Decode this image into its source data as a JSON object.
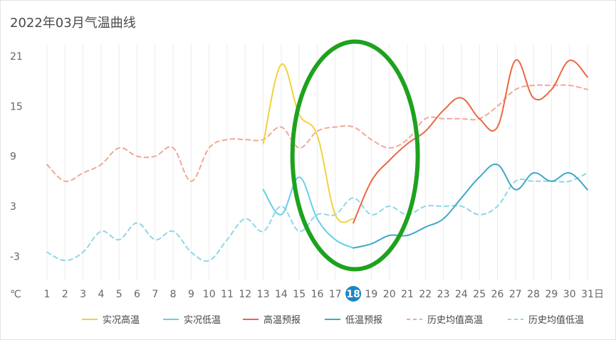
{
  "chart_data": {
    "type": "line",
    "title": "2022年03月气温曲线",
    "y_unit": "℃",
    "x_unit": "日",
    "ylim": [
      -5,
      23
    ],
    "yticks": [
      -3,
      3,
      9,
      15,
      21
    ],
    "x": [
      1,
      2,
      3,
      4,
      5,
      6,
      7,
      8,
      9,
      10,
      11,
      12,
      13,
      14,
      15,
      16,
      17,
      18,
      19,
      20,
      21,
      22,
      23,
      24,
      25,
      26,
      27,
      28,
      29,
      30,
      31
    ],
    "x_labels": [
      "1",
      "2",
      "3",
      "4",
      "5",
      "6",
      "7",
      "8",
      "9",
      "10",
      "11",
      "12",
      "13",
      "14",
      "15",
      "16",
      "17",
      "18",
      "19",
      "20",
      "21",
      "22",
      "23",
      "24",
      "25",
      "26",
      "27",
      "28",
      "29",
      "30",
      "31"
    ],
    "highlight_day": "18",
    "legend_position": "bottom-right",
    "grid": "vertical",
    "series": [
      {
        "name": "实况高温",
        "color": "#f2d23a",
        "dash": false,
        "points": [
          [
            13,
            10.5
          ],
          [
            14,
            20.0
          ],
          [
            15,
            14.0
          ],
          [
            16,
            11.5
          ],
          [
            17,
            2.0
          ],
          [
            18,
            1.5
          ]
        ]
      },
      {
        "name": "实况低温",
        "color": "#66cfe8",
        "dash": false,
        "points": [
          [
            13,
            5.0
          ],
          [
            14,
            2.0
          ],
          [
            15,
            6.5
          ],
          [
            16,
            1.5
          ],
          [
            17,
            -1.0
          ],
          [
            18,
            -2.0
          ]
        ]
      },
      {
        "name": "高温预报",
        "color": "#ee6644",
        "dash": false,
        "points": [
          [
            18,
            1.0
          ],
          [
            19,
            6.0
          ],
          [
            20,
            8.5
          ],
          [
            21,
            10.5
          ],
          [
            22,
            12.0
          ],
          [
            23,
            14.5
          ],
          [
            24,
            16.0
          ],
          [
            25,
            13.5
          ],
          [
            26,
            12.5
          ],
          [
            27,
            20.5
          ],
          [
            28,
            16.0
          ],
          [
            29,
            17.0
          ],
          [
            30,
            20.5
          ],
          [
            31,
            18.5
          ]
        ]
      },
      {
        "name": "低温预报",
        "color": "#3fa8c9",
        "dash": false,
        "points": [
          [
            18,
            -2.0
          ],
          [
            19,
            -1.5
          ],
          [
            20,
            -0.5
          ],
          [
            21,
            -0.5
          ],
          [
            22,
            0.5
          ],
          [
            23,
            1.5
          ],
          [
            24,
            4.0
          ],
          [
            25,
            6.5
          ],
          [
            26,
            8.0
          ],
          [
            27,
            5.0
          ],
          [
            28,
            7.0
          ],
          [
            29,
            6.0
          ],
          [
            30,
            7.0
          ],
          [
            31,
            5.0
          ]
        ]
      },
      {
        "name": "历史均值高温",
        "color": "#f3a796",
        "dash": true,
        "points": [
          [
            1,
            8.0
          ],
          [
            2,
            6.0
          ],
          [
            3,
            7.0
          ],
          [
            4,
            8.0
          ],
          [
            5,
            10.0
          ],
          [
            6,
            9.0
          ],
          [
            7,
            9.0
          ],
          [
            8,
            10.0
          ],
          [
            9,
            6.0
          ],
          [
            10,
            10.0
          ],
          [
            11,
            11.0
          ],
          [
            12,
            11.0
          ],
          [
            13,
            11.0
          ],
          [
            14,
            12.5
          ],
          [
            15,
            10.0
          ],
          [
            16,
            12.0
          ],
          [
            17,
            12.5
          ],
          [
            18,
            12.5
          ],
          [
            19,
            11.0
          ],
          [
            20,
            10.0
          ],
          [
            21,
            11.0
          ],
          [
            22,
            13.5
          ],
          [
            23,
            13.5
          ],
          [
            24,
            13.5
          ],
          [
            25,
            13.5
          ],
          [
            26,
            15.0
          ],
          [
            27,
            17.0
          ],
          [
            28,
            17.5
          ],
          [
            29,
            17.5
          ],
          [
            30,
            17.5
          ],
          [
            31,
            17.0
          ]
        ]
      },
      {
        "name": "历史均值低温",
        "color": "#8fd7e6",
        "dash": true,
        "points": [
          [
            1,
            -2.5
          ],
          [
            2,
            -3.5
          ],
          [
            3,
            -2.5
          ],
          [
            4,
            0.0
          ],
          [
            5,
            -1.0
          ],
          [
            6,
            1.0
          ],
          [
            7,
            -1.0
          ],
          [
            8,
            0.0
          ],
          [
            9,
            -2.5
          ],
          [
            10,
            -3.5
          ],
          [
            11,
            -1.0
          ],
          [
            12,
            1.5
          ],
          [
            13,
            0.0
          ],
          [
            14,
            3.0
          ],
          [
            15,
            0.0
          ],
          [
            16,
            2.0
          ],
          [
            17,
            2.0
          ],
          [
            18,
            4.0
          ],
          [
            19,
            2.0
          ],
          [
            20,
            3.0
          ],
          [
            21,
            2.0
          ],
          [
            22,
            3.0
          ],
          [
            23,
            3.0
          ],
          [
            24,
            3.0
          ],
          [
            25,
            2.0
          ],
          [
            26,
            3.0
          ],
          [
            27,
            6.0
          ],
          [
            28,
            6.0
          ],
          [
            29,
            6.0
          ],
          [
            30,
            6.0
          ],
          [
            31,
            7.0
          ]
        ]
      }
    ],
    "annotation": {
      "shape": "ellipse",
      "color": "#1ea21e",
      "center_day": 18.1,
      "center_value": 9.1
    }
  }
}
